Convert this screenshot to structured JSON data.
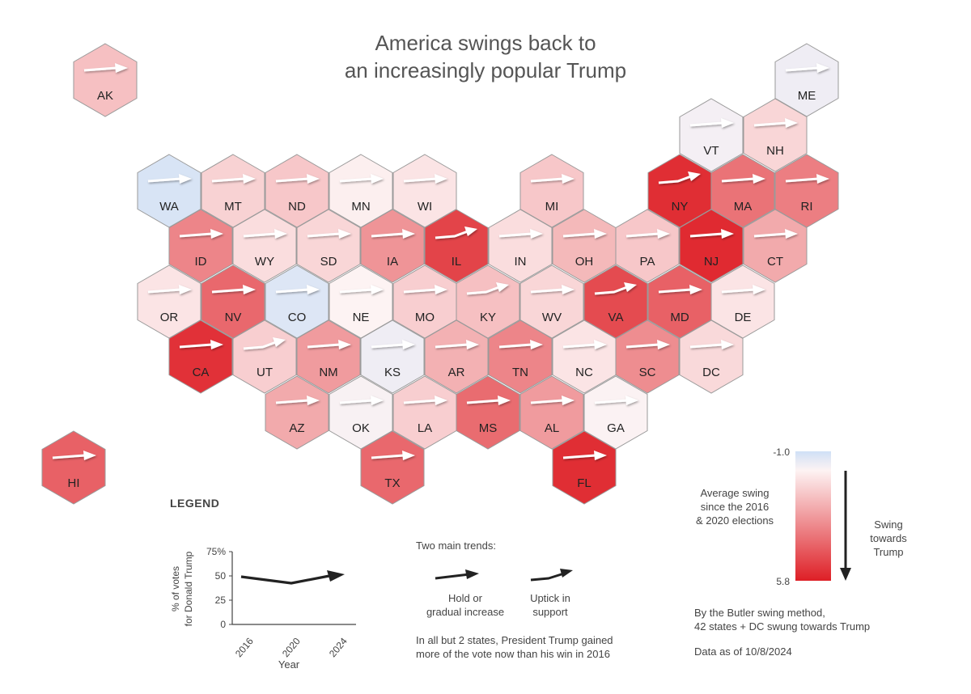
{
  "title_line1": "America swings back to",
  "title_line2": "an increasingly popular Trump",
  "colors": {
    "low": "#cfe0f6",
    "mid": "#fdf3f3",
    "high": "#de1f26",
    "border": "#9a9a9a"
  },
  "scale": {
    "min": -1.0,
    "max": 5.8,
    "min_label": "-1.0",
    "max_label": "5.8"
  },
  "states": [
    {
      "code": "AK",
      "swing": 1.4,
      "trend": "hold"
    },
    {
      "code": "ME",
      "swing": -0.3,
      "trend": "hold"
    },
    {
      "code": "VT",
      "swing": -0.2,
      "trend": "hold"
    },
    {
      "code": "NH",
      "swing": 0.8,
      "trend": "hold"
    },
    {
      "code": "WA",
      "swing": -0.8,
      "trend": "hold"
    },
    {
      "code": "MT",
      "swing": 0.9,
      "trend": "hold"
    },
    {
      "code": "ND",
      "swing": 1.2,
      "trend": "hold"
    },
    {
      "code": "MN",
      "swing": 0.1,
      "trend": "hold"
    },
    {
      "code": "WI",
      "swing": 0.4,
      "trend": "hold"
    },
    {
      "code": "MI",
      "swing": 1.2,
      "trend": "hold"
    },
    {
      "code": "NY",
      "swing": 5.4,
      "trend": "uptick"
    },
    {
      "code": "MA",
      "swing": 3.5,
      "trend": "hold"
    },
    {
      "code": "RI",
      "swing": 3.2,
      "trend": "hold"
    },
    {
      "code": "ID",
      "swing": 3.0,
      "trend": "hold"
    },
    {
      "code": "WY",
      "swing": 0.6,
      "trend": "hold"
    },
    {
      "code": "SD",
      "swing": 0.8,
      "trend": "hold"
    },
    {
      "code": "IA",
      "swing": 2.6,
      "trend": "hold"
    },
    {
      "code": "IL",
      "swing": 4.8,
      "trend": "uptick"
    },
    {
      "code": "IN",
      "swing": 0.6,
      "trend": "hold"
    },
    {
      "code": "OH",
      "swing": 1.6,
      "trend": "hold"
    },
    {
      "code": "PA",
      "swing": 1.2,
      "trend": "hold"
    },
    {
      "code": "NJ",
      "swing": 5.5,
      "trend": "hold"
    },
    {
      "code": "CT",
      "swing": 2.0,
      "trend": "hold"
    },
    {
      "code": "OR",
      "swing": 0.4,
      "trend": "hold"
    },
    {
      "code": "NV",
      "swing": 3.8,
      "trend": "hold"
    },
    {
      "code": "CO",
      "swing": -0.7,
      "trend": "hold"
    },
    {
      "code": "NE",
      "swing": 0.0,
      "trend": "hold"
    },
    {
      "code": "MO",
      "swing": 1.0,
      "trend": "hold"
    },
    {
      "code": "KY",
      "swing": 1.4,
      "trend": "uptick"
    },
    {
      "code": "WV",
      "swing": 0.8,
      "trend": "hold"
    },
    {
      "code": "VA",
      "swing": 4.6,
      "trend": "uptick"
    },
    {
      "code": "MD",
      "swing": 4.0,
      "trend": "hold"
    },
    {
      "code": "DE",
      "swing": 0.4,
      "trend": "hold"
    },
    {
      "code": "CA",
      "swing": 5.3,
      "trend": "hold"
    },
    {
      "code": "UT",
      "swing": 1.0,
      "trend": "uptick"
    },
    {
      "code": "NM",
      "swing": 2.4,
      "trend": "hold"
    },
    {
      "code": "KS",
      "swing": -0.3,
      "trend": "hold"
    },
    {
      "code": "AR",
      "swing": 1.8,
      "trend": "hold"
    },
    {
      "code": "TN",
      "swing": 3.0,
      "trend": "hold"
    },
    {
      "code": "NC",
      "swing": 0.4,
      "trend": "hold"
    },
    {
      "code": "SC",
      "swing": 2.8,
      "trend": "hold"
    },
    {
      "code": "DC",
      "swing": 0.7,
      "trend": "hold"
    },
    {
      "code": "AZ",
      "swing": 2.0,
      "trend": "hold"
    },
    {
      "code": "OK",
      "swing": -0.1,
      "trend": "hold"
    },
    {
      "code": "LA",
      "swing": 1.0,
      "trend": "hold"
    },
    {
      "code": "MS",
      "swing": 3.7,
      "trend": "hold"
    },
    {
      "code": "AL",
      "swing": 2.4,
      "trend": "hold"
    },
    {
      "code": "GA",
      "swing": -0.05,
      "trend": "hold"
    },
    {
      "code": "TX",
      "swing": 3.8,
      "trend": "hold"
    },
    {
      "code": "FL",
      "swing": 5.4,
      "trend": "hold"
    },
    {
      "code": "HI",
      "swing": 4.0,
      "trend": "hold"
    }
  ],
  "legend": {
    "heading": "LEGEND",
    "y_axis_label_line1": "% of votes",
    "y_axis_label_line2": "for Donald Trump",
    "y_ticks": [
      "75%",
      "50",
      "25",
      "0"
    ],
    "x_ticks": [
      "2016",
      "2020",
      "2024"
    ],
    "x_axis_label": "Year",
    "trends_heading": "Two main trends:",
    "hold_label_line1": "Hold or",
    "hold_label_line2": "gradual increase",
    "uptick_label_line1": "Uptick in",
    "uptick_label_line2": "support",
    "note_line1": "In all but 2 states, President Trump gained",
    "note_line2": "more of the vote now than his win in 2016"
  },
  "scale_legend": {
    "label_line1": "Average swing",
    "label_line2": "since the 2016",
    "label_line3": "& 2020 elections",
    "arrow_label_line1": "Swing",
    "arrow_label_line2": "towards",
    "arrow_label_line3": "Trump"
  },
  "footnote_line1": "By the Butler swing method,",
  "footnote_line2": "42 states + DC swung towards Trump",
  "data_as_of": "Data as of 10/8/2024"
}
